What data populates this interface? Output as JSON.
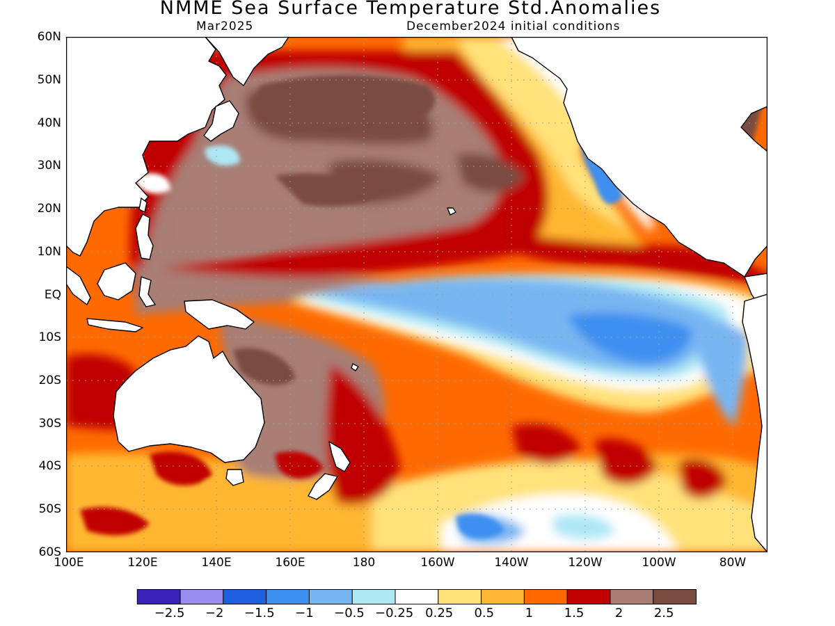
{
  "header": {
    "title": "NMME Sea Surface Temperature Std.Anomalies",
    "target_month": "Mar2025",
    "initial_conditions": "December2024 initial conditions"
  },
  "axes": {
    "latitude_labels": [
      "60N",
      "50N",
      "40N",
      "30N",
      "20N",
      "10N",
      "EQ",
      "10S",
      "20S",
      "30S",
      "40S",
      "50S",
      "60S"
    ],
    "longitude_labels": [
      "100E",
      "120E",
      "140E",
      "160E",
      "180",
      "160W",
      "140W",
      "120W",
      "100W",
      "80W"
    ]
  },
  "colorbar": {
    "colors": [
      "#3a22b8",
      "#9b8cf0",
      "#1f5fe0",
      "#3d8ff0",
      "#78b6f2",
      "#aee8f5",
      "#ffffff",
      "#ffe27a",
      "#ffb733",
      "#ff6a00",
      "#c00000",
      "#a87e74",
      "#7a4c40"
    ],
    "tick_labels": [
      "-2.5",
      "-2",
      "-1.5",
      "-1",
      "-0.5",
      "-0.25",
      "0.25",
      "0.5",
      "1",
      "1.5",
      "2",
      "2.5"
    ]
  },
  "map_colors": {
    "land": "#ffffff",
    "coast": "#000000",
    "grid": "#9a9a9a"
  }
}
